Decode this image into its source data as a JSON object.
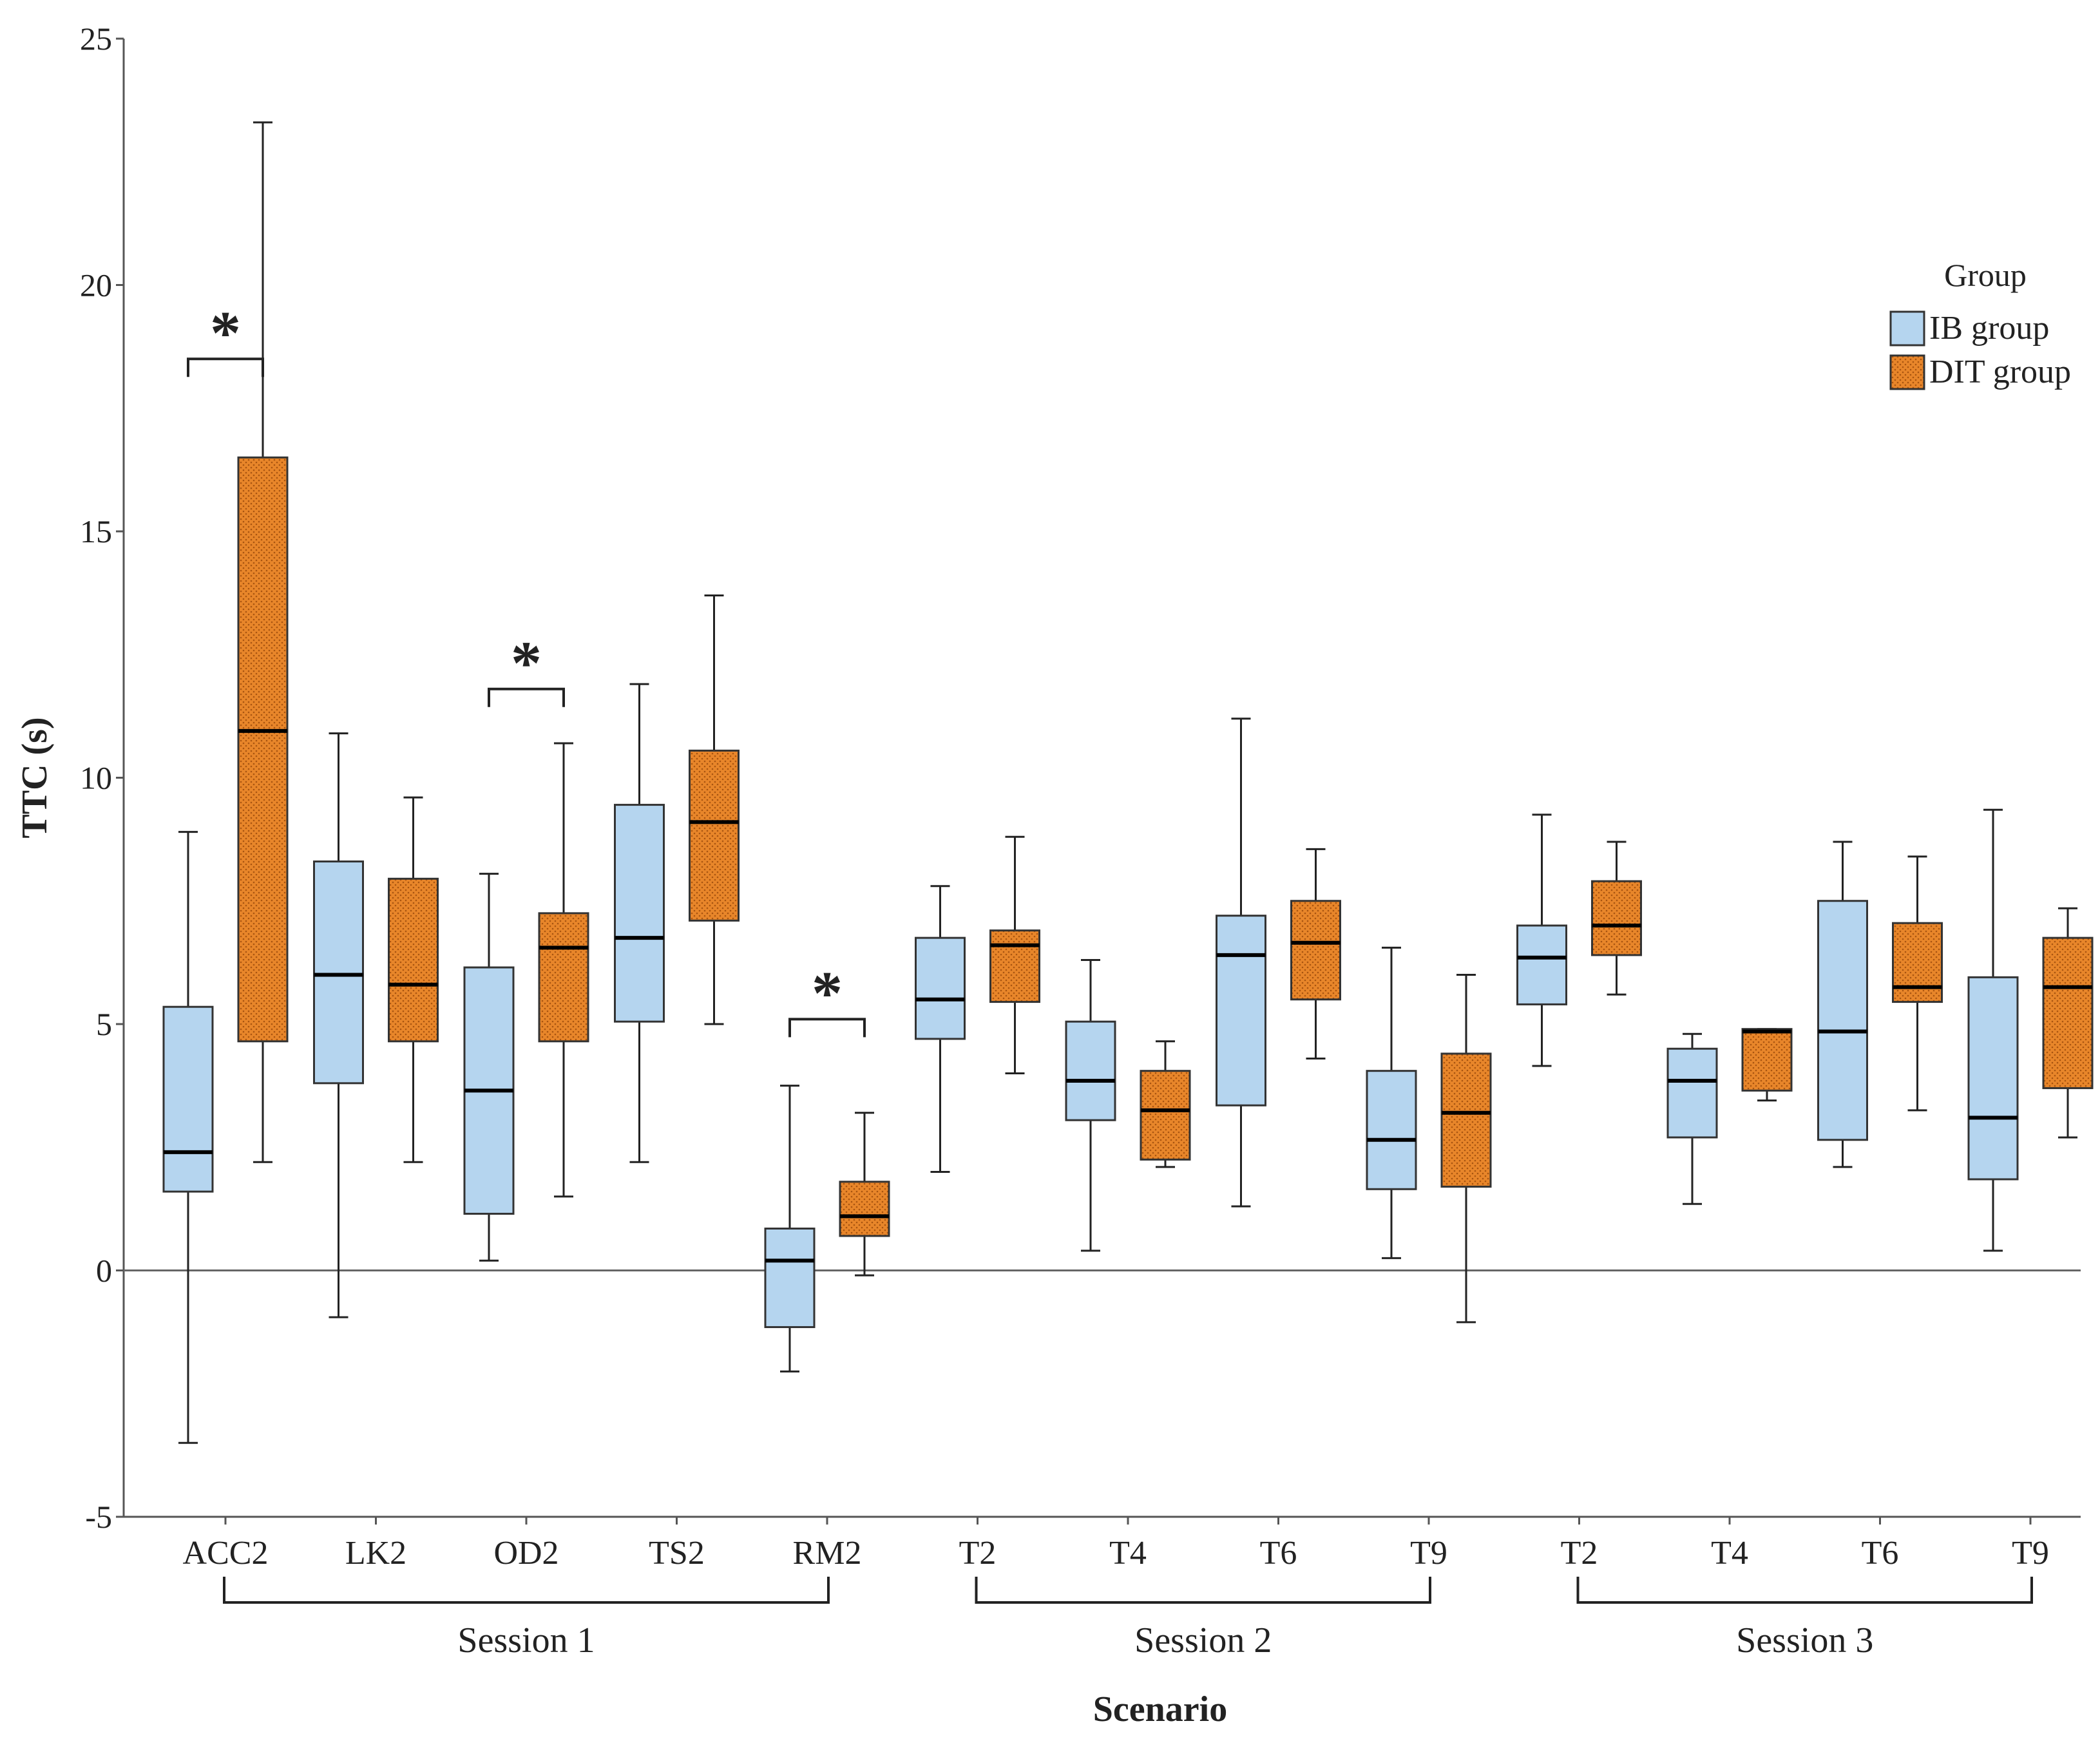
{
  "chart_data": {
    "type": "boxplot",
    "ylabel": "TTC (s)",
    "xlabel": "Scenario",
    "ylim": [
      -5,
      25
    ],
    "yticks": [
      -5,
      0,
      5,
      10,
      15,
      20,
      25
    ],
    "reference_line": 0,
    "categories": [
      "ACC2",
      "LK2",
      "OD2",
      "TS2",
      "RM2",
      "T2",
      "T4",
      "T6",
      "T9",
      "T2",
      "T4",
      "T6",
      "T9"
    ],
    "sessions": [
      {
        "label": "Session 1",
        "from": 0,
        "to": 4
      },
      {
        "label": "Session 2",
        "from": 5,
        "to": 8
      },
      {
        "label": "Session 3",
        "from": 9,
        "to": 12
      }
    ],
    "legend": {
      "title": "Group",
      "position": "top-right",
      "entries": [
        {
          "name": "IB group",
          "color": "#b5d5ef"
        },
        {
          "name": "DIT group",
          "color": "#e8862a"
        }
      ]
    },
    "series": [
      {
        "name": "IB group",
        "color": "#b5d5ef",
        "boxes": [
          {
            "min": -3.5,
            "q1": 1.6,
            "median": 2.4,
            "q3": 5.35,
            "max": 8.9
          },
          {
            "min": -0.95,
            "q1": 3.8,
            "median": 6.0,
            "q3": 8.3,
            "max": 10.9
          },
          {
            "min": 0.2,
            "q1": 1.15,
            "median": 3.65,
            "q3": 6.15,
            "max": 8.05
          },
          {
            "min": 2.2,
            "q1": 5.05,
            "median": 6.75,
            "q3": 9.45,
            "max": 11.9
          },
          {
            "min": -2.05,
            "q1": -1.15,
            "median": 0.2,
            "q3": 0.85,
            "max": 3.75
          },
          {
            "min": 2.0,
            "q1": 4.7,
            "median": 5.5,
            "q3": 6.75,
            "max": 7.8
          },
          {
            "min": 0.4,
            "q1": 3.05,
            "median": 3.85,
            "q3": 5.05,
            "max": 6.3
          },
          {
            "min": 1.3,
            "q1": 3.35,
            "median": 6.4,
            "q3": 7.2,
            "max": 11.2
          },
          {
            "min": 0.25,
            "q1": 1.65,
            "median": 2.65,
            "q3": 4.05,
            "max": 6.55
          },
          {
            "min": 4.15,
            "q1": 5.4,
            "median": 6.35,
            "q3": 7.0,
            "max": 9.25
          },
          {
            "min": 1.35,
            "q1": 2.7,
            "median": 3.85,
            "q3": 4.5,
            "max": 4.8
          },
          {
            "min": 2.1,
            "q1": 2.65,
            "median": 4.85,
            "q3": 7.5,
            "max": 8.7
          },
          {
            "min": 0.4,
            "q1": 1.85,
            "median": 3.1,
            "q3": 5.95,
            "max": 9.35
          }
        ]
      },
      {
        "name": "DIT group",
        "color": "#e8862a",
        "boxes": [
          {
            "min": 2.2,
            "q1": 4.65,
            "median": 10.95,
            "q3": 16.5,
            "max": 23.3
          },
          {
            "min": 2.2,
            "q1": 4.65,
            "median": 5.8,
            "q3": 7.95,
            "max": 9.6
          },
          {
            "min": 1.5,
            "q1": 4.65,
            "median": 6.55,
            "q3": 7.25,
            "max": 10.7
          },
          {
            "min": 5.0,
            "q1": 7.1,
            "median": 9.1,
            "q3": 10.55,
            "max": 13.7
          },
          {
            "min": -0.1,
            "q1": 0.7,
            "median": 1.1,
            "q3": 1.8,
            "max": 3.2
          },
          {
            "min": 4.0,
            "q1": 5.45,
            "median": 6.6,
            "q3": 6.9,
            "max": 8.8
          },
          {
            "min": 2.1,
            "q1": 2.25,
            "median": 3.25,
            "q3": 4.05,
            "max": 4.65
          },
          {
            "min": 4.3,
            "q1": 5.5,
            "median": 6.65,
            "q3": 7.5,
            "max": 8.55
          },
          {
            "min": -1.05,
            "q1": 1.7,
            "median": 3.2,
            "q3": 4.4,
            "max": 6.0
          },
          {
            "min": 5.6,
            "q1": 6.4,
            "median": 7.0,
            "q3": 7.9,
            "max": 8.7
          },
          {
            "min": 3.45,
            "q1": 3.65,
            "median": 4.85,
            "q3": 4.9,
            "max": 4.9
          },
          {
            "min": 3.25,
            "q1": 5.45,
            "median": 5.75,
            "q3": 7.05,
            "max": 8.4
          },
          {
            "min": 2.7,
            "q1": 3.7,
            "median": 5.75,
            "q3": 6.75,
            "max": 7.35
          }
        ]
      }
    ],
    "significance": [
      {
        "category_index": 0,
        "label": "*",
        "y": 18.5
      },
      {
        "category_index": 2,
        "label": "*",
        "y": 11.8
      },
      {
        "category_index": 4,
        "label": "*",
        "y": 5.1
      }
    ]
  }
}
